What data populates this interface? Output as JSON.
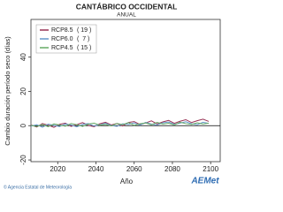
{
  "chart_data": {
    "type": "line",
    "title": "CANTÁBRICO OCCIDENTAL",
    "subtitle": "ANUAL",
    "x_label": "Año",
    "y_label": "Cambio duración período seco (días)",
    "x": [
      2006,
      2009,
      2012,
      2015,
      2018,
      2021,
      2024,
      2027,
      2030,
      2033,
      2036,
      2039,
      2042,
      2045,
      2048,
      2051,
      2054,
      2057,
      2060,
      2063,
      2066,
      2069,
      2072,
      2075,
      2078,
      2081,
      2084,
      2087,
      2090,
      2093,
      2096,
      2099
    ],
    "series": [
      {
        "name": "RCP8.5",
        "models": "( 19 )",
        "color": "#993355",
        "values": [
          0.5,
          -0.8,
          1.2,
          0.3,
          -1.0,
          0.8,
          1.5,
          -0.4,
          0.6,
          1.8,
          0.2,
          -0.6,
          1.1,
          2.0,
          0.4,
          1.3,
          -0.2,
          1.9,
          2.4,
          0.7,
          1.6,
          2.8,
          1.0,
          2.2,
          3.1,
          1.4,
          2.6,
          3.5,
          1.8,
          2.9,
          3.8,
          2.5
        ]
      },
      {
        "name": "RCP6.0",
        "models": "(  7 )",
        "color": "#6699cc",
        "values": [
          -0.3,
          0.6,
          -0.9,
          0.9,
          0.2,
          -0.5,
          1.0,
          0.4,
          -0.7,
          0.8,
          1.2,
          -0.2,
          0.5,
          1.4,
          0.1,
          -0.4,
          1.1,
          0.7,
          1.6,
          0.3,
          1.9,
          0.9,
          0.4,
          1.7,
          2.1,
          0.8,
          1.5,
          2.3,
          1.1,
          0.6,
          2.0,
          1.3
        ]
      },
      {
        "name": "RCP4.5",
        "models": "( 15 )",
        "color": "#66aa66",
        "values": [
          0.2,
          -0.5,
          0.7,
          -0.6,
          1.0,
          0.4,
          -0.3,
          1.2,
          0.6,
          -0.4,
          0.9,
          1.5,
          0.3,
          0.8,
          -0.2,
          1.3,
          0.6,
          1.8,
          0.2,
          1.1,
          1.6,
          0.5,
          1.9,
          0.9,
          1.4,
          0.4,
          2.0,
          1.2,
          0.7,
          1.7,
          1.0,
          1.5
        ]
      }
    ],
    "xlim": [
      2006,
      2105
    ],
    "xticks": [
      2020,
      2040,
      2060,
      2080,
      2100
    ],
    "ylim": [
      -21,
      62
    ],
    "yticks": [
      -20,
      0,
      20,
      40
    ],
    "legend": "upper left"
  },
  "footer": {
    "credit": "© Agencia Estatal de Meteorología",
    "logo": "AEMet"
  }
}
